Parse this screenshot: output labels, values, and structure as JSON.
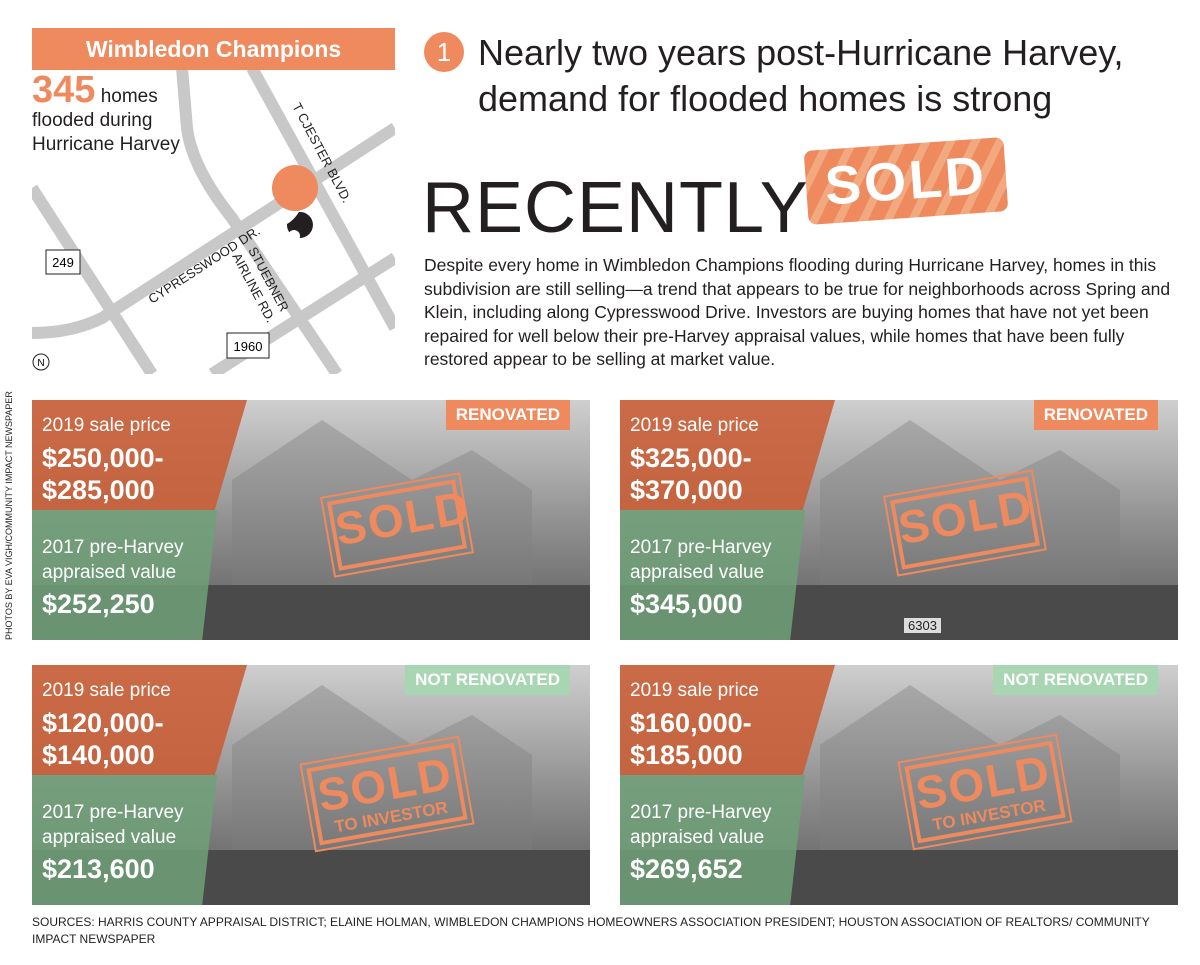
{
  "map": {
    "title": "Wimbledon Champions",
    "stat_number": "345",
    "stat_unit": "homes",
    "stat_text": [
      "flooded during",
      "Hurricane Harvey"
    ],
    "roads": [
      "T CJESTER BLVD.",
      "CYPRESSWOOD DR.",
      "STUEBNER",
      "AIRLINE RD."
    ],
    "highway_249": "249",
    "highway_1960": "1960",
    "north": "N",
    "marker_color": "#ee8a5e"
  },
  "headline": {
    "number": "1",
    "text_line1": "Nearly two years post-Hurricane Harvey,",
    "text_line2": "demand for flooded homes is strong"
  },
  "banner": {
    "recently": "RECENTLY",
    "sold": "SOLD"
  },
  "description": "Despite every home in Wimbledon Champions flooding during Hurricane Harvey, homes in this subdivision are still selling—a trend that appears to be true for neighborhoods across Spring and Klein, including along Cypresswood Drive. Investors are buying homes that have not yet been repaired for well below their pre-Harvey appraisal values, while homes that have been fully restored appear to be selling at market value.",
  "photo_credit": "PHOTOS BY EVA VIGH/COMMUNITY IMPACT NEWSPAPER",
  "cards": [
    {
      "status": "RENOVATED",
      "sale_label": "2019 sale price",
      "sale_low": "$250,000-",
      "sale_high": "$285,000",
      "appraised_label1": "2017 pre-Harvey",
      "appraised_label2": "appraised value",
      "appraised": "$252,250",
      "stamp": "SOLD",
      "stamp_sub": ""
    },
    {
      "status": "RENOVATED",
      "sale_label": "2019 sale price",
      "sale_low": "$325,000-",
      "sale_high": "$370,000",
      "appraised_label1": "2017 pre-Harvey",
      "appraised_label2": "appraised value",
      "appraised": "$345,000",
      "stamp": "SOLD",
      "stamp_sub": "",
      "house_number": "6303"
    },
    {
      "status": "NOT RENOVATED",
      "sale_label": "2019 sale price",
      "sale_low": "$120,000-",
      "sale_high": "$140,000",
      "appraised_label1": "2017 pre-Harvey",
      "appraised_label2": "appraised value",
      "appraised": "$213,600",
      "stamp": "SOLD",
      "stamp_sub": "TO INVESTOR"
    },
    {
      "status": "NOT RENOVATED",
      "sale_label": "2019 sale price",
      "sale_low": "$160,000-",
      "sale_high": "$185,000",
      "appraised_label1": "2017 pre-Harvey",
      "appraised_label2": "appraised value",
      "appraised": "$269,652",
      "stamp": "SOLD",
      "stamp_sub": "TO INVESTOR"
    }
  ],
  "colors": {
    "accent": "#ee8a5e",
    "renovated": "#ee8a5e",
    "not_renovated": "#a9d6b2"
  },
  "sources": "SOURCES: HARRIS COUNTY APPRAISAL DISTRICT; ELAINE HOLMAN, WIMBLEDON CHAMPIONS HOMEOWNERS ASSOCIATION PRESIDENT; HOUSTON ASSOCIATION OF REALTORS/ COMMUNITY IMPACT NEWSPAPER"
}
